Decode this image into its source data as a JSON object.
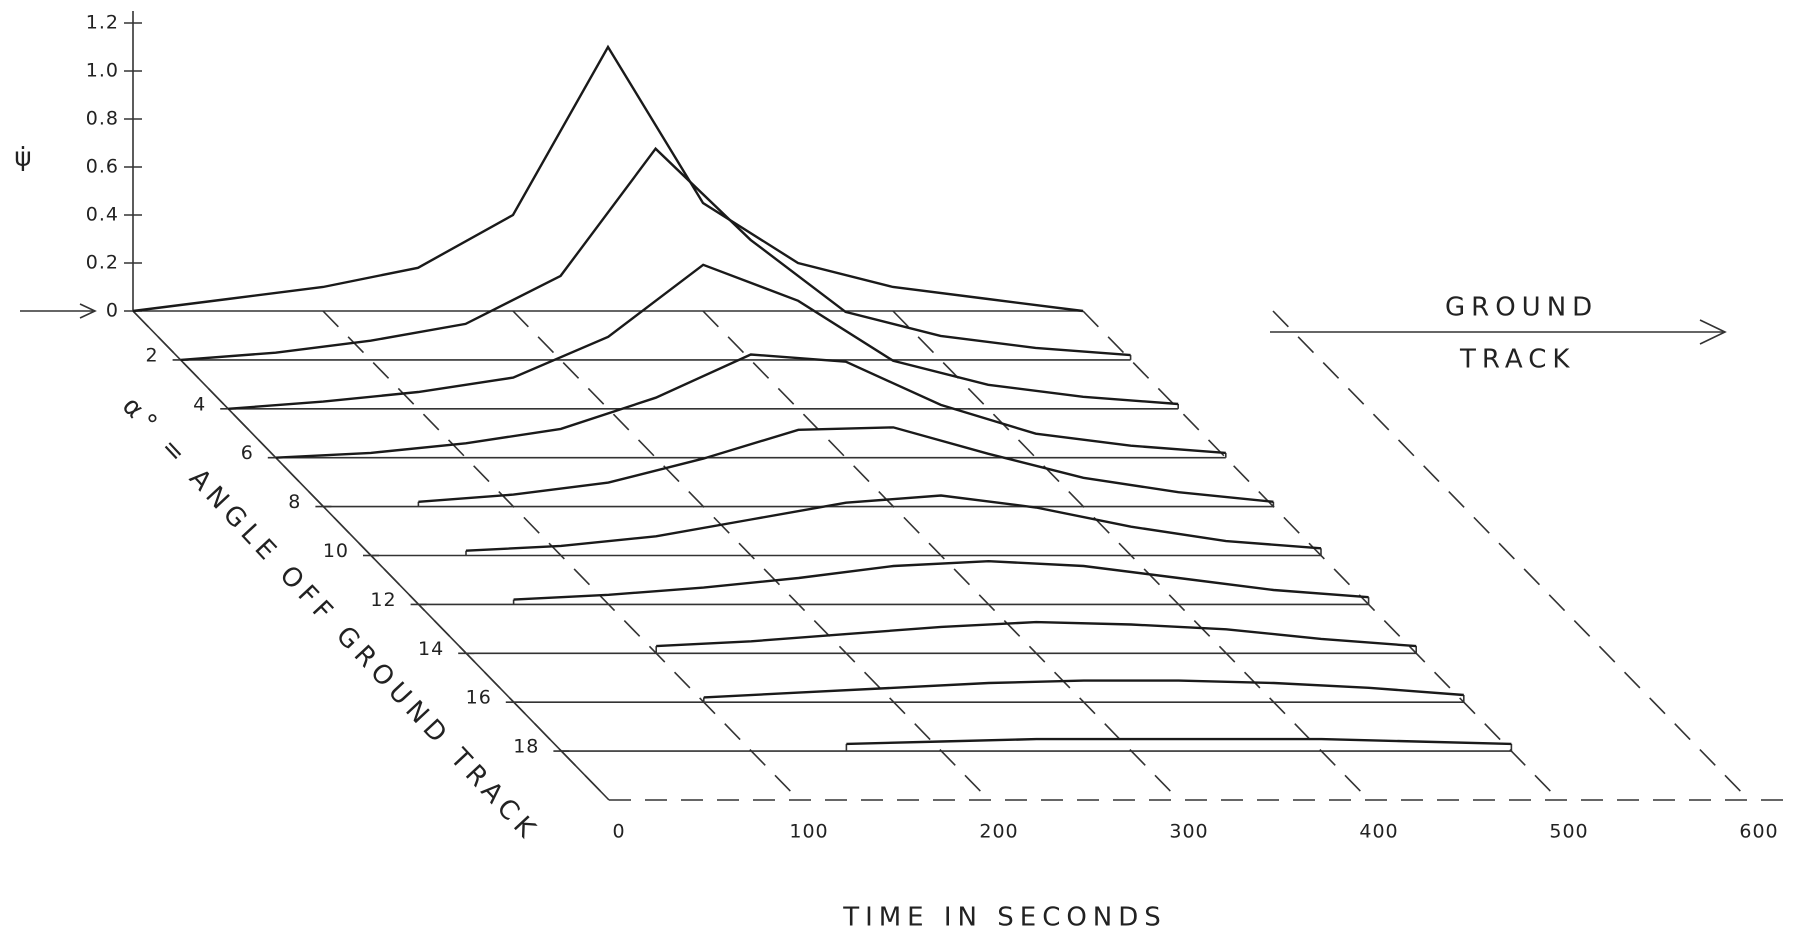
{
  "chart_data": {
    "type": "waterfall",
    "y_label": "ψ̇",
    "x_label": "TIME IN SECONDS",
    "z_label": "α° = ANGLE OFF GROUND TRACK",
    "annotation_lines": [
      "GROUND",
      "TRACK"
    ],
    "x": [
      0,
      50,
      100,
      150,
      200,
      250,
      300,
      350,
      400,
      450,
      500
    ],
    "series": [
      {
        "alpha": 0,
        "values": [
          0,
          0.05,
          0.1,
          0.18,
          0.4,
          1.1,
          0.45,
          0.2,
          0.1,
          0.05,
          0.0
        ]
      },
      {
        "alpha": 2,
        "values": [
          0,
          0.03,
          0.08,
          0.15,
          0.35,
          0.88,
          0.5,
          0.2,
          0.1,
          0.05,
          0.02
        ]
      },
      {
        "alpha": 4,
        "values": [
          0,
          0.03,
          0.07,
          0.13,
          0.3,
          0.6,
          0.45,
          0.2,
          0.1,
          0.05,
          0.02
        ]
      },
      {
        "alpha": 6,
        "values": [
          0,
          0.02,
          0.06,
          0.12,
          0.25,
          0.43,
          0.4,
          0.22,
          0.1,
          0.05,
          0.02
        ]
      },
      {
        "alpha": 8,
        "values": [
          null,
          0.02,
          0.05,
          0.1,
          0.2,
          0.32,
          0.33,
          0.22,
          0.12,
          0.06,
          0.02
        ]
      },
      {
        "alpha": 10,
        "values": [
          null,
          0.02,
          0.04,
          0.08,
          0.15,
          0.22,
          0.25,
          0.2,
          0.12,
          0.06,
          0.03
        ]
      },
      {
        "alpha": 12,
        "values": [
          null,
          0.02,
          0.04,
          0.07,
          0.11,
          0.16,
          0.18,
          0.16,
          0.11,
          0.06,
          0.03
        ]
      },
      {
        "alpha": 14,
        "values": [
          null,
          null,
          0.03,
          0.05,
          0.08,
          0.11,
          0.13,
          0.12,
          0.1,
          0.06,
          0.03
        ]
      },
      {
        "alpha": 16,
        "values": [
          null,
          null,
          0.02,
          0.04,
          0.06,
          0.08,
          0.09,
          0.09,
          0.08,
          0.06,
          0.03
        ]
      },
      {
        "alpha": 18,
        "values": [
          null,
          null,
          null,
          0.03,
          0.04,
          0.05,
          0.05,
          0.05,
          0.05,
          0.04,
          0.03
        ]
      }
    ],
    "ylim": [
      0,
      1.2
    ],
    "yticks": [
      0,
      0.2,
      0.4,
      0.6,
      0.8,
      {
        "value": 1,
        "label": "1.0"
      },
      1.2
    ],
    "xlim": [
      0,
      600
    ],
    "xticks": [
      0,
      100,
      200,
      300,
      400,
      500,
      600
    ],
    "zlim": [
      0,
      20
    ],
    "zticks": [
      2,
      4,
      6,
      8,
      10,
      12,
      14,
      16,
      18
    ]
  }
}
